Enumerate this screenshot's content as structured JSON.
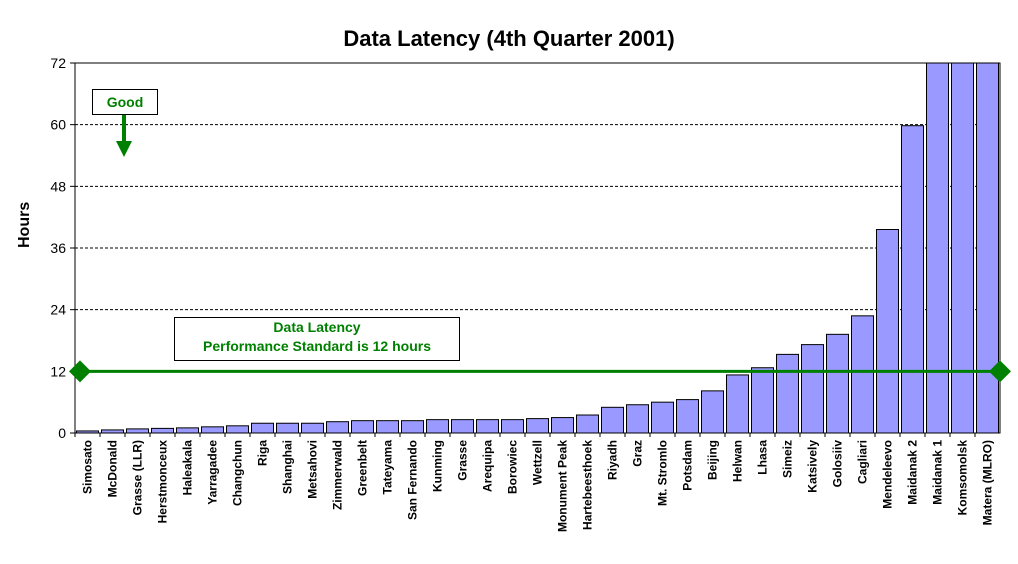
{
  "chart_data": {
    "type": "bar",
    "title": "Data Latency (4th Quarter 2001)",
    "ylabel": "Hours",
    "xlabel": "",
    "ylim": [
      0,
      72
    ],
    "yticks": [
      "0",
      "12",
      "24",
      "36",
      "48",
      "60",
      "72"
    ],
    "grid": true,
    "colors": {
      "bar": "#9999ff",
      "bar_edge": "#000000",
      "reference": "#008000"
    },
    "categories": [
      "Simosato",
      "McDonald",
      "Grasse (LLR)",
      "Herstmonceux",
      "Haleakala",
      "Yarragadee",
      "Changchun",
      "Riga",
      "Shanghai",
      "Metsahovi",
      "Zimmerwald",
      "Greenbelt",
      "Tateyama",
      "San Fernando",
      "Kunming",
      "Grasse",
      "Arequipa",
      "Borowiec",
      "Wettzell",
      "Monument Peak",
      "Hartebeesthoek",
      "Riyadh",
      "Graz",
      "Mt. Stromlo",
      "Potsdam",
      "Beijing",
      "Helwan",
      "Lhasa",
      "Simeiz",
      "Katsively",
      "Golosiiv",
      "Cagliari",
      "Mendeleevo",
      "Maidanak 2",
      "Maidanak 1",
      "Komsomolsk",
      "Matera (MLRO)"
    ],
    "values": [
      0.4,
      0.6,
      0.8,
      0.9,
      1.0,
      1.2,
      1.4,
      1.9,
      1.9,
      1.9,
      2.2,
      2.4,
      2.4,
      2.4,
      2.6,
      2.6,
      2.6,
      2.6,
      2.8,
      3.0,
      3.5,
      5.0,
      5.5,
      6.0,
      6.5,
      8.2,
      11.3,
      12.7,
      15.3,
      17.2,
      19.2,
      22.8,
      39.6,
      59.8,
      72,
      72,
      72
    ],
    "reference_line": {
      "value": 12
    },
    "annotations": {
      "good_label": "Good",
      "standard_line1": "Data Latency",
      "standard_line2": "Performance Standard is 12 hours"
    }
  }
}
